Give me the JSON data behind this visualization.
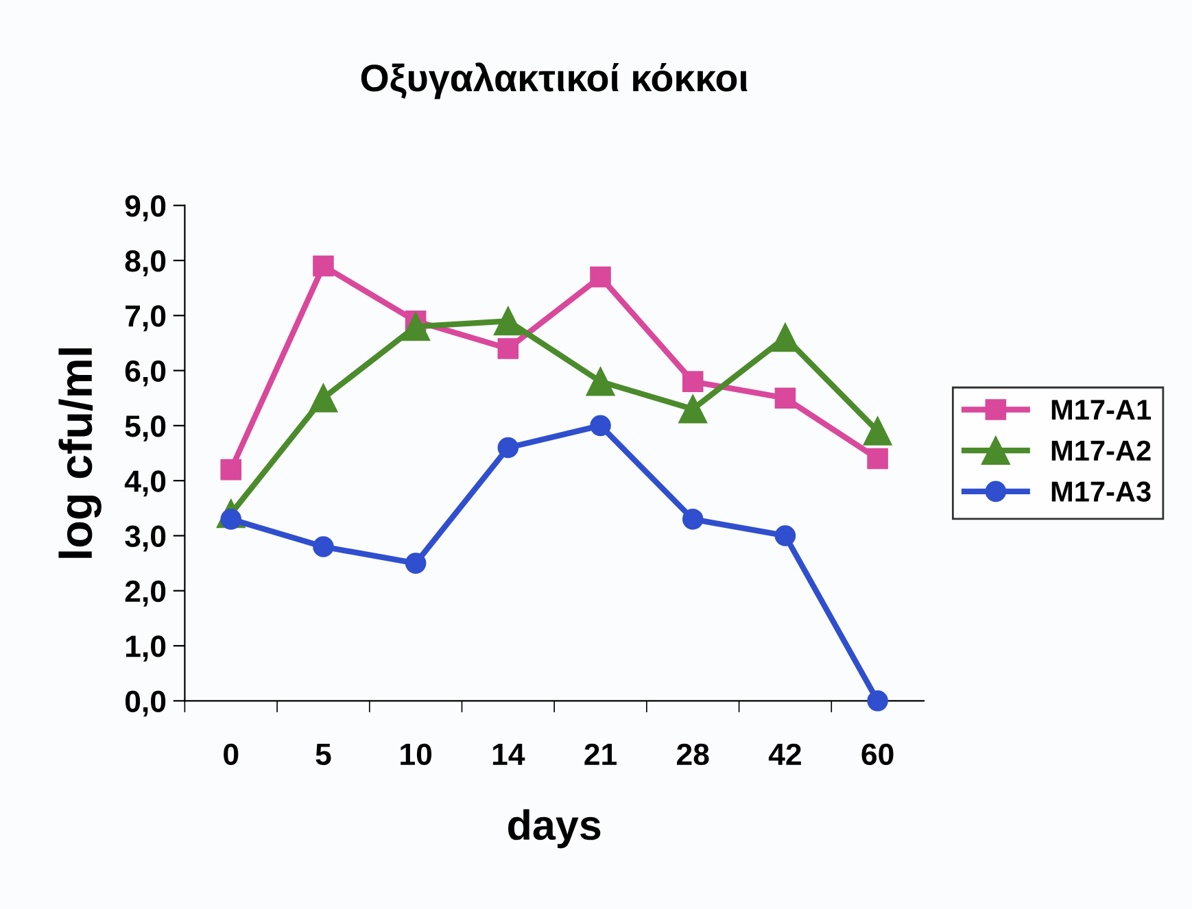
{
  "chart_data": {
    "type": "line",
    "title": "Οξυγαλακτικοί κόκκοι",
    "xlabel": "days",
    "ylabel": "log cfu/ml",
    "categories": [
      "0",
      "5",
      "10",
      "14",
      "21",
      "28",
      "42",
      "60"
    ],
    "series": [
      {
        "name": "M17-A1",
        "color": "#d9489b",
        "marker": "square",
        "values": [
          4.2,
          7.9,
          6.9,
          6.4,
          7.7,
          5.8,
          5.5,
          4.4
        ]
      },
      {
        "name": "M17-A2",
        "color": "#4b8b2b",
        "marker": "triangle",
        "values": [
          3.4,
          5.5,
          6.8,
          6.9,
          5.8,
          5.3,
          6.6,
          4.9
        ]
      },
      {
        "name": "M17-A3",
        "color": "#2f4fce",
        "marker": "circle",
        "values": [
          3.3,
          2.8,
          2.5,
          4.6,
          5.0,
          3.3,
          3.0,
          0.0
        ]
      }
    ],
    "ylim": [
      0,
      9
    ],
    "yticks": [
      {
        "value": 0,
        "label": "0,0"
      },
      {
        "value": 1,
        "label": "1,0"
      },
      {
        "value": 2,
        "label": "2,0"
      },
      {
        "value": 3,
        "label": "3,0"
      },
      {
        "value": 4,
        "label": "4,0"
      },
      {
        "value": 5,
        "label": "5,0"
      },
      {
        "value": 6,
        "label": "6,0"
      },
      {
        "value": 7,
        "label": "7,0"
      },
      {
        "value": 8,
        "label": "8,0"
      },
      {
        "value": 9,
        "label": "9,0"
      }
    ],
    "grid": false,
    "legend": "right",
    "line_style": "solid"
  }
}
